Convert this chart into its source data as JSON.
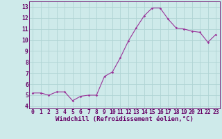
{
  "x": [
    0,
    1,
    2,
    3,
    4,
    5,
    6,
    7,
    8,
    9,
    10,
    11,
    12,
    13,
    14,
    15,
    16,
    17,
    18,
    19,
    20,
    21,
    22,
    23
  ],
  "y": [
    5.2,
    5.2,
    5.0,
    5.3,
    5.3,
    4.5,
    4.9,
    5.0,
    5.0,
    6.7,
    7.1,
    8.4,
    9.9,
    11.1,
    12.2,
    12.9,
    12.9,
    11.9,
    11.1,
    11.0,
    10.8,
    10.7,
    9.8,
    10.5
  ],
  "line_color": "#993399",
  "marker": "D",
  "marker_size": 1.8,
  "bg_color": "#ceeaea",
  "grid_color": "#b0d4d4",
  "xlabel": "Windchill (Refroidissement éolien,°C)",
  "xlim": [
    -0.5,
    23.5
  ],
  "ylim": [
    3.8,
    13.5
  ],
  "yticks": [
    4,
    5,
    6,
    7,
    8,
    9,
    10,
    11,
    12,
    13
  ],
  "xticks": [
    0,
    1,
    2,
    3,
    4,
    5,
    6,
    7,
    8,
    9,
    10,
    11,
    12,
    13,
    14,
    15,
    16,
    17,
    18,
    19,
    20,
    21,
    22,
    23
  ],
  "xlabel_fontsize": 6.5,
  "tick_fontsize": 5.8,
  "axis_label_color": "#660066",
  "tick_color": "#660066",
  "spine_color": "#660066",
  "line_width": 0.8
}
